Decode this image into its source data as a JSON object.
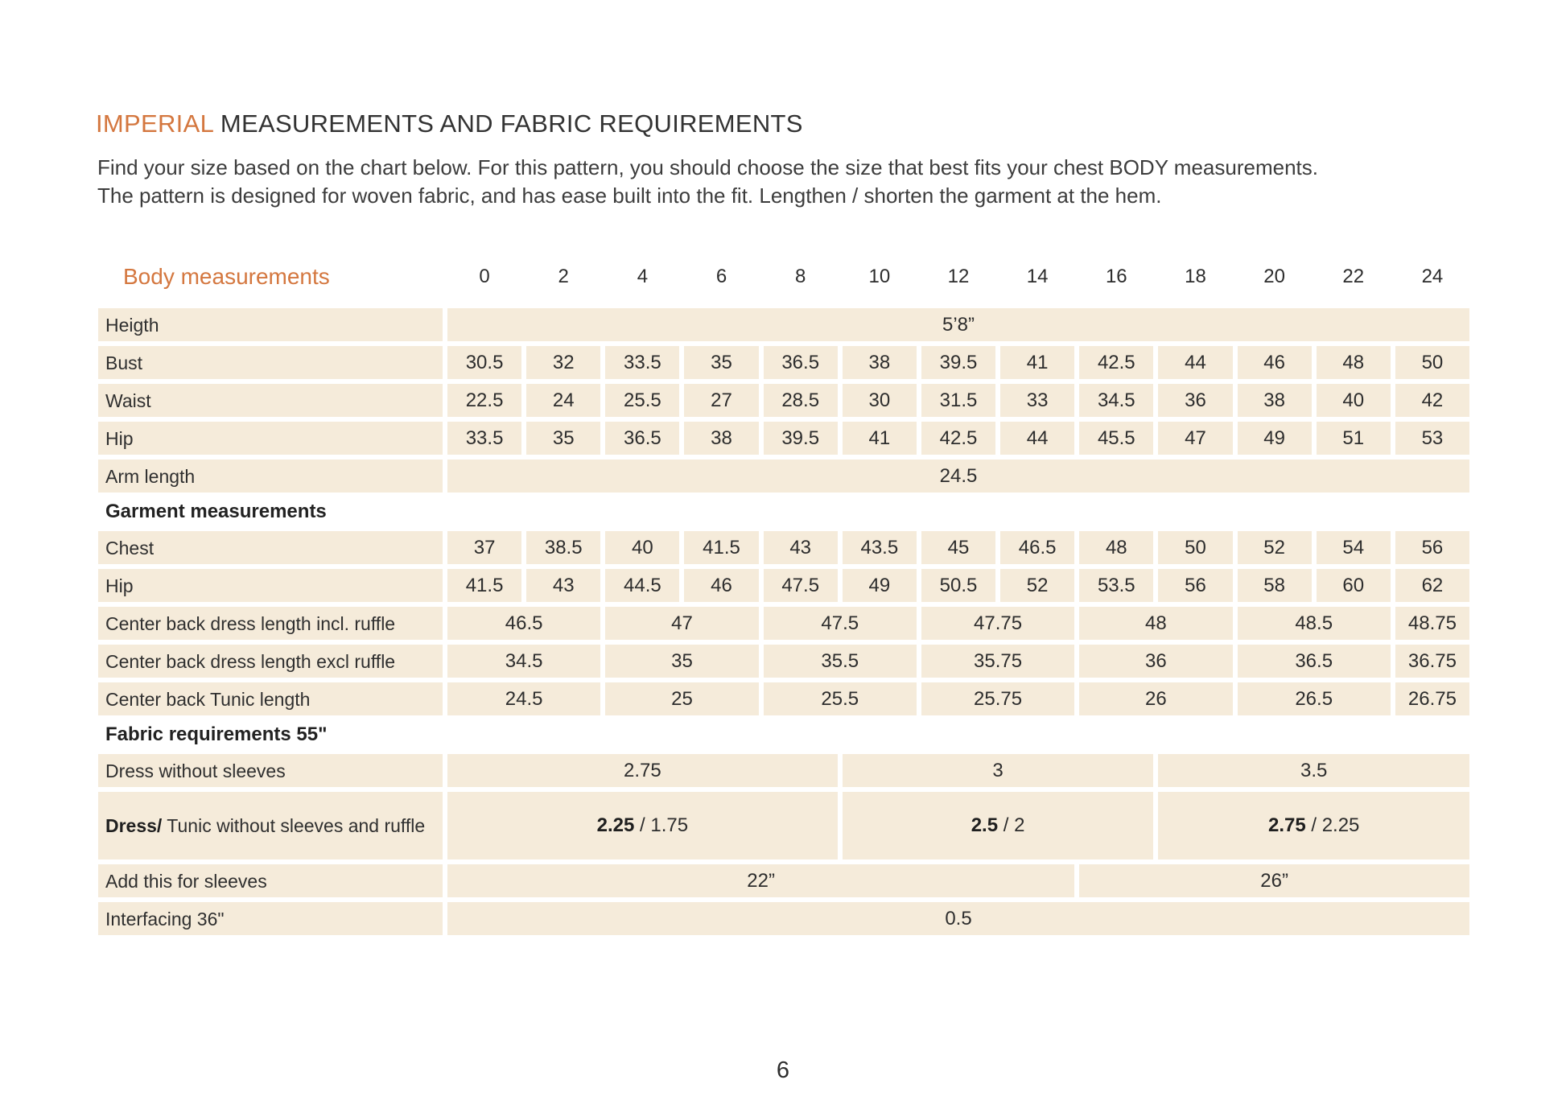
{
  "colors": {
    "accent_orange": "#d4773f",
    "cell_beige": "#f5ebda",
    "text_dark": "#2f2f2f",
    "page_background": "#ffffff"
  },
  "header": {
    "title_highlight": "IMPERIAL",
    "title_rest": " MEASUREMENTS AND FABRIC REQUIREMENTS",
    "intro_line1": "Find your size based on the chart below. For this pattern, you should choose the size that best fits your chest BODY measurements.",
    "intro_line2": "The pattern is designed for woven fabric, and has ease built into the fit. Lengthen / shorten the garment at the hem."
  },
  "footer": {
    "page_number": "6"
  },
  "table": {
    "header": {
      "label": "Body measurements",
      "sizes": [
        "0",
        "2",
        "4",
        "6",
        "8",
        "10",
        "12",
        "14",
        "16",
        "18",
        "20",
        "22",
        "24"
      ]
    },
    "rows": [
      {
        "type": "data",
        "label": "Heigth",
        "cells": [
          {
            "span": 13,
            "text": "5’8”"
          }
        ]
      },
      {
        "type": "data",
        "label": "Bust",
        "cells": [
          {
            "span": 1,
            "text": "30.5"
          },
          {
            "span": 1,
            "text": "32"
          },
          {
            "span": 1,
            "text": "33.5"
          },
          {
            "span": 1,
            "text": "35"
          },
          {
            "span": 1,
            "text": "36.5"
          },
          {
            "span": 1,
            "text": "38"
          },
          {
            "span": 1,
            "text": "39.5"
          },
          {
            "span": 1,
            "text": "41"
          },
          {
            "span": 1,
            "text": "42.5"
          },
          {
            "span": 1,
            "text": "44"
          },
          {
            "span": 1,
            "text": "46"
          },
          {
            "span": 1,
            "text": "48"
          },
          {
            "span": 1,
            "text": "50"
          }
        ]
      },
      {
        "type": "data",
        "label": "Waist",
        "cells": [
          {
            "span": 1,
            "text": "22.5"
          },
          {
            "span": 1,
            "text": "24"
          },
          {
            "span": 1,
            "text": "25.5"
          },
          {
            "span": 1,
            "text": "27"
          },
          {
            "span": 1,
            "text": "28.5"
          },
          {
            "span": 1,
            "text": "30"
          },
          {
            "span": 1,
            "text": "31.5"
          },
          {
            "span": 1,
            "text": "33"
          },
          {
            "span": 1,
            "text": "34.5"
          },
          {
            "span": 1,
            "text": "36"
          },
          {
            "span": 1,
            "text": "38"
          },
          {
            "span": 1,
            "text": "40"
          },
          {
            "span": 1,
            "text": "42"
          }
        ]
      },
      {
        "type": "data",
        "label": "Hip",
        "cells": [
          {
            "span": 1,
            "text": "33.5"
          },
          {
            "span": 1,
            "text": "35"
          },
          {
            "span": 1,
            "text": "36.5"
          },
          {
            "span": 1,
            "text": "38"
          },
          {
            "span": 1,
            "text": "39.5"
          },
          {
            "span": 1,
            "text": "41"
          },
          {
            "span": 1,
            "text": "42.5"
          },
          {
            "span": 1,
            "text": "44"
          },
          {
            "span": 1,
            "text": "45.5"
          },
          {
            "span": 1,
            "text": "47"
          },
          {
            "span": 1,
            "text": "49"
          },
          {
            "span": 1,
            "text": "51"
          },
          {
            "span": 1,
            "text": "53"
          }
        ]
      },
      {
        "type": "data",
        "label": "Arm length",
        "cells": [
          {
            "span": 13,
            "text": "24.5"
          }
        ]
      },
      {
        "type": "section",
        "label": "Garment measurements"
      },
      {
        "type": "data",
        "label": "Chest",
        "cells": [
          {
            "span": 1,
            "text": "37"
          },
          {
            "span": 1,
            "text": "38.5"
          },
          {
            "span": 1,
            "text": "40"
          },
          {
            "span": 1,
            "text": "41.5"
          },
          {
            "span": 1,
            "text": "43"
          },
          {
            "span": 1,
            "text": "43.5"
          },
          {
            "span": 1,
            "text": "45"
          },
          {
            "span": 1,
            "text": "46.5"
          },
          {
            "span": 1,
            "text": "48"
          },
          {
            "span": 1,
            "text": "50"
          },
          {
            "span": 1,
            "text": "52"
          },
          {
            "span": 1,
            "text": "54"
          },
          {
            "span": 1,
            "text": "56"
          }
        ]
      },
      {
        "type": "data",
        "label": "Hip",
        "cells": [
          {
            "span": 1,
            "text": "41.5"
          },
          {
            "span": 1,
            "text": "43"
          },
          {
            "span": 1,
            "text": "44.5"
          },
          {
            "span": 1,
            "text": "46"
          },
          {
            "span": 1,
            "text": "47.5"
          },
          {
            "span": 1,
            "text": "49"
          },
          {
            "span": 1,
            "text": "50.5"
          },
          {
            "span": 1,
            "text": "52"
          },
          {
            "span": 1,
            "text": "53.5"
          },
          {
            "span": 1,
            "text": "56"
          },
          {
            "span": 1,
            "text": "58"
          },
          {
            "span": 1,
            "text": "60"
          },
          {
            "span": 1,
            "text": "62"
          }
        ]
      },
      {
        "type": "data",
        "label": "Center back dress length incl. ruffle",
        "cells": [
          {
            "span": 2,
            "text": "46.5"
          },
          {
            "span": 2,
            "text": "47"
          },
          {
            "span": 2,
            "text": "47.5"
          },
          {
            "span": 2,
            "text": "47.75"
          },
          {
            "span": 2,
            "text": "48"
          },
          {
            "span": 2,
            "text": "48.5"
          },
          {
            "span": 1,
            "text": "48.75"
          }
        ]
      },
      {
        "type": "data",
        "label": "Center back dress length excl ruffle",
        "cells": [
          {
            "span": 2,
            "text": "34.5"
          },
          {
            "span": 2,
            "text": "35"
          },
          {
            "span": 2,
            "text": "35.5"
          },
          {
            "span": 2,
            "text": "35.75"
          },
          {
            "span": 2,
            "text": "36"
          },
          {
            "span": 2,
            "text": "36.5"
          },
          {
            "span": 1,
            "text": "36.75"
          }
        ]
      },
      {
        "type": "data",
        "label": "Center back Tunic length",
        "cells": [
          {
            "span": 2,
            "text": "24.5"
          },
          {
            "span": 2,
            "text": "25"
          },
          {
            "span": 2,
            "text": "25.5"
          },
          {
            "span": 2,
            "text": "25.75"
          },
          {
            "span": 2,
            "text": "26"
          },
          {
            "span": 2,
            "text": "26.5"
          },
          {
            "span": 1,
            "text": "26.75"
          }
        ]
      },
      {
        "type": "section",
        "label": "Fabric requirements 55\""
      },
      {
        "type": "data",
        "label": "Dress without sleeves",
        "cells": [
          {
            "span": 5,
            "text": "2.75"
          },
          {
            "span": 4,
            "text": "3"
          },
          {
            "span": 4,
            "text": "3.5"
          }
        ]
      },
      {
        "type": "data",
        "label_bold": "Dress/",
        "label": " Tunic without sleeves and ruffle",
        "tall": true,
        "cells": [
          {
            "span": 5,
            "bold": "2.25",
            "text": " / 1.75"
          },
          {
            "span": 4,
            "bold": "2.5",
            "text": " / 2"
          },
          {
            "span": 4,
            "bold": "2.75",
            "text": " / 2.25"
          }
        ]
      },
      {
        "type": "data",
        "label": "Add this for sleeves",
        "cells": [
          {
            "span": 8,
            "text": "22”"
          },
          {
            "span": 5,
            "text": "26”"
          }
        ]
      },
      {
        "type": "data",
        "label": "Interfacing 36\"",
        "cells": [
          {
            "span": 13,
            "text": "0.5"
          }
        ]
      }
    ]
  }
}
